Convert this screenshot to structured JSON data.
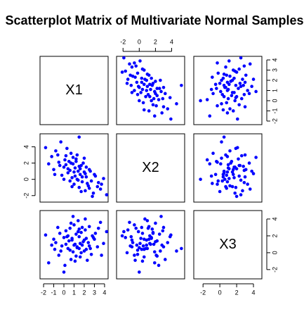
{
  "chart_data": {
    "type": "scatter_matrix",
    "title": "Scatterplot Matrix of Multivariate Normal Samples",
    "color": "#0000ff",
    "variables": [
      {
        "name": "X1",
        "lim": [
          -2.35,
          4.35
        ],
        "ticks": [
          -2,
          -1,
          0,
          1,
          2,
          3,
          4
        ],
        "values": [
          -1.8,
          -1.2,
          -0.8,
          -0.5,
          -0.3,
          0.0,
          0.2,
          0.4,
          0.5,
          0.6,
          0.7,
          0.8,
          0.9,
          1.0,
          1.1,
          1.2,
          1.3,
          1.4,
          1.5,
          1.6,
          1.7,
          1.8,
          2.0,
          2.1,
          2.2,
          2.4,
          2.5,
          2.7,
          2.9,
          3.1,
          3.3,
          3.6,
          3.9,
          4.2,
          -1.5,
          -1.0,
          -0.6,
          -0.2,
          0.1,
          0.3,
          0.6,
          0.9,
          1.1,
          1.3,
          1.5,
          1.7,
          1.9,
          2.1,
          2.3,
          2.6,
          2.8,
          3.0,
          3.4,
          0.4,
          0.8,
          1.2,
          1.6,
          2.0,
          0.0,
          -0.4,
          1.0,
          1.4,
          2.2,
          0.7,
          1.8,
          2.5,
          -0.9,
          0.2,
          3.7,
          1.5
        ]
      },
      {
        "name": "X2",
        "lim": [
          -2.8,
          5.6
        ],
        "ticks": [
          -2,
          0,
          2,
          4
        ],
        "values": [
          3.9,
          2.8,
          3.5,
          2.1,
          4.6,
          1.5,
          2.9,
          0.8,
          2.2,
          1.1,
          3.2,
          0.2,
          1.9,
          -0.6,
          1.4,
          2.5,
          0.0,
          1.0,
          -1.0,
          0.6,
          1.7,
          -0.3,
          0.9,
          -1.4,
          0.3,
          -0.8,
          1.2,
          -0.2,
          -1.7,
          0.4,
          -0.9,
          -1.2,
          0.1,
          -1.9,
          1.9,
          1.2,
          3.0,
          0.5,
          2.4,
          3.8,
          -0.2,
          2.7,
          0.4,
          3.0,
          1.6,
          -1.5,
          2.0,
          0.7,
          -0.5,
          1.0,
          -2.1,
          0.6,
          -0.4,
          1.3,
          -0.9,
          2.2,
          1.3,
          2.6,
          0.0,
          1.7,
          0.9,
          -0.1,
          1.5,
          2.0,
          0.3,
          -1.1,
          0.6,
          1.8,
          -0.6,
          5.2
        ]
      },
      {
        "name": "X3",
        "lim": [
          -3.1,
          5.0
        ],
        "ticks": [
          -2,
          0,
          2,
          4
        ],
        "values": [
          2.1,
          0.9,
          1.2,
          -0.3,
          0.2,
          1.8,
          2.6,
          0.5,
          1.4,
          2.9,
          -0.8,
          1.7,
          0.1,
          3.3,
          1.0,
          2.2,
          0.6,
          3.8,
          1.9,
          -0.5,
          2.4,
          0.9,
          1.5,
          2.7,
          0.4,
          1.2,
          3.1,
          -0.2,
          1.8,
          2.3,
          0.7,
          3.6,
          1.1,
          2.5,
          -1.2,
          1.6,
          3.0,
          0.8,
          -1.5,
          1.9,
          0.3,
          4.3,
          -1.0,
          0.7,
          2.8,
          0.0,
          1.3,
          4.0,
          -0.9,
          0.5,
          2.0,
          1.6,
          2.9,
          2.0,
          1.5,
          -0.4,
          1.1,
          0.2,
          -2.3,
          2.3,
          0.9,
          2.5,
          1.7,
          3.5,
          3.0,
          0.8,
          0.4,
          1.0,
          -0.3,
          0.5
        ]
      }
    ]
  }
}
